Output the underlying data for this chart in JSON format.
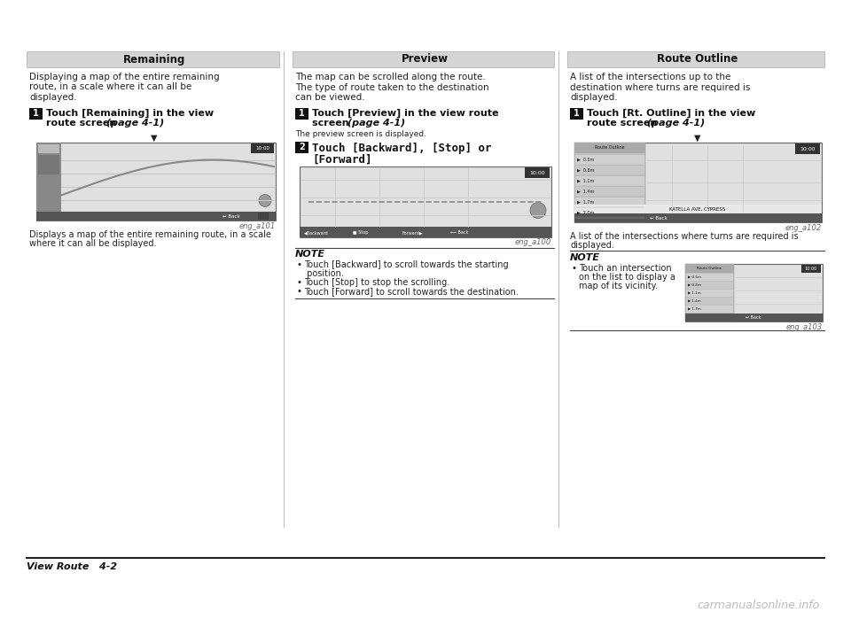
{
  "page_bg": "#ffffff",
  "header_bg": "#d8d8d8",
  "col1_title": "Remaining",
  "col2_title": "Preview",
  "col3_title": "Route Outline",
  "col1_body_lines": [
    "Displaying a map of the entire remaining",
    "route, in a scale where it can all be",
    "displayed."
  ],
  "col1_step1_a": "Touch [Remaining] in the view",
  "col1_step1_b": "route screen ",
  "col1_step1_b_italic": "(page 4-1)",
  "col1_caption": "eng_a101",
  "col1_subcap_lines": [
    "Displays a map of the entire remaining route, in a scale",
    "where it can all be displayed."
  ],
  "col2_body_lines": [
    "The map can be scrolled along the route.",
    "The type of route taken to the destination",
    "can be viewed."
  ],
  "col2_step1_a": "Touch [Preview] in the view route",
  "col2_step1_b": "screen ",
  "col2_step1_b_italic": "(page 4-1)",
  "col2_step1_sub": "The preview screen is displayed.",
  "col2_step2_a": "Touch [Backward], [Stop] or",
  "col2_step2_b": "[Forward]",
  "col2_caption": "eng_a100",
  "col2_note_title": "NOTE",
  "col2_note_items": [
    "Touch [Backward] to scroll towards the starting",
    " position.",
    "Touch [Stop] to stop the scrolling.",
    "Touch [Forward] to scroll towards the destination."
  ],
  "col2_note_bullets": [
    true,
    false,
    true,
    true
  ],
  "col3_body_lines": [
    "A list of the intersections up to the",
    "destination where turns are required is",
    "displayed."
  ],
  "col3_step1_a": "Touch [Rt. Outline] in the view",
  "col3_step1_b": "route screen ",
  "col3_step1_b_italic": "(page 4-1)",
  "col3_caption2": "eng_a102",
  "col3_subcap_lines": [
    "A list of the intersections where turns are required is",
    "displayed."
  ],
  "col3_note_title": "NOTE",
  "col3_note_item_lines": [
    "Touch an intersection",
    "on the list to display a",
    "map of its vicinity."
  ],
  "col3_caption3": "eng_a103",
  "footer_text": "View Route",
  "footer_page": "4-2",
  "watermark": "carmanualsonline.info",
  "text_color": "#111111",
  "body_color": "#222222",
  "note_line_color": "#555555",
  "caption_color": "#666666"
}
